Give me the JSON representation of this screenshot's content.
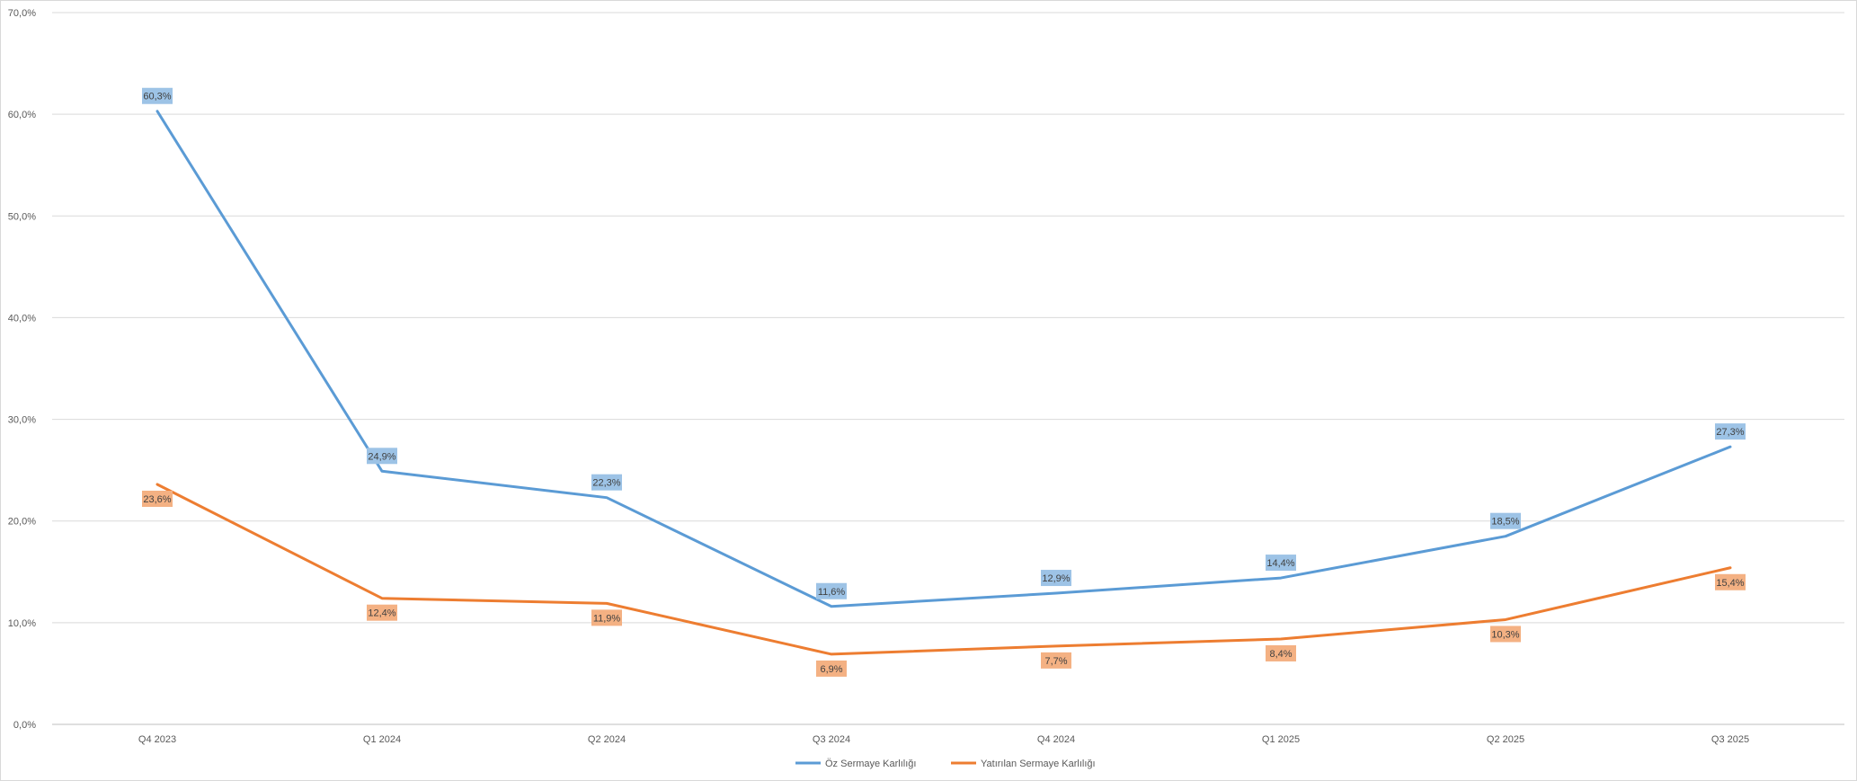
{
  "chart_data": {
    "type": "line",
    "title": "",
    "xlabel": "",
    "ylabel": "",
    "categories": [
      "Q4 2023",
      "Q1 2024",
      "Q2 2024",
      "Q3 2024",
      "Q4 2024",
      "Q1 2025",
      "Q2 2025",
      "Q3 2025"
    ],
    "y_ticks": [
      "0,0%",
      "10,0%",
      "20,0%",
      "30,0%",
      "40,0%",
      "50,0%",
      "60,0%",
      "70,0%"
    ],
    "ylim": [
      0,
      70
    ],
    "grid": true,
    "legend_position": "bottom",
    "series": [
      {
        "name": "Öz Sermaye Karlılığı",
        "color": "#5b9bd5",
        "label_bg": "#9dc3e6",
        "label_position": "above",
        "values": [
          60.3,
          24.9,
          22.3,
          11.6,
          12.9,
          14.4,
          18.5,
          27.3
        ],
        "labels": [
          "60,3%",
          "24,9%",
          "22,3%",
          "11,6%",
          "12,9%",
          "14,4%",
          "18,5%",
          "27,3%"
        ]
      },
      {
        "name": "Yatırılan Sermaye Karlılığı",
        "color": "#ed7d31",
        "label_bg": "#f4b183",
        "label_position": "below",
        "values": [
          23.6,
          12.4,
          11.9,
          6.9,
          7.7,
          8.4,
          10.3,
          15.4
        ],
        "labels": [
          "23,6%",
          "12,4%",
          "11,9%",
          "6,9%",
          "7,7%",
          "8,4%",
          "10,3%",
          "15,4%"
        ]
      }
    ]
  }
}
